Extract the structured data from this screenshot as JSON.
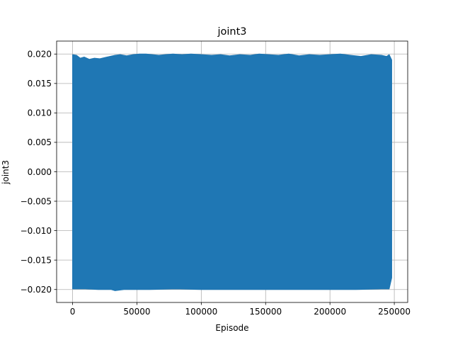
{
  "chart_data": {
    "type": "area",
    "title": "joint3",
    "xlabel": "Episode",
    "ylabel": "joint3",
    "xlim": [
      -12400,
      260400
    ],
    "ylim": [
      -0.0222,
      0.0222
    ],
    "xticks": [
      0,
      50000,
      100000,
      150000,
      200000,
      250000
    ],
    "xtick_labels": [
      "0",
      "50000",
      "100000",
      "150000",
      "200000",
      "250000"
    ],
    "yticks": [
      -0.02,
      -0.015,
      -0.01,
      -0.005,
      0.0,
      0.005,
      0.01,
      0.015,
      0.02
    ],
    "ytick_labels": [
      "−0.020",
      "−0.015",
      "−0.010",
      "−0.005",
      "0.000",
      "0.005",
      "0.010",
      "0.015",
      "0.020"
    ],
    "grid": true,
    "legend": "none",
    "series": [
      {
        "color": "#1f77b4",
        "x_range": [
          0,
          248000
        ],
        "upper_envelope": [
          [
            0,
            0.0199
          ],
          [
            3000,
            0.0198
          ],
          [
            6000,
            0.0193
          ],
          [
            9000,
            0.0195
          ],
          [
            13000,
            0.0191
          ],
          [
            17000,
            0.0193
          ],
          [
            21000,
            0.0192
          ],
          [
            25000,
            0.0194
          ],
          [
            29000,
            0.0196
          ],
          [
            33000,
            0.0198
          ],
          [
            37000,
            0.0199
          ],
          [
            42000,
            0.0197
          ],
          [
            47000,
            0.0199
          ],
          [
            52000,
            0.02
          ],
          [
            57000,
            0.02
          ],
          [
            62000,
            0.0199
          ],
          [
            67000,
            0.0198
          ],
          [
            72000,
            0.0199
          ],
          [
            78000,
            0.02
          ],
          [
            85000,
            0.0199
          ],
          [
            92000,
            0.02
          ],
          [
            100000,
            0.0199
          ],
          [
            108000,
            0.0198
          ],
          [
            115000,
            0.0199
          ],
          [
            122000,
            0.0197
          ],
          [
            130000,
            0.0199
          ],
          [
            138000,
            0.0198
          ],
          [
            145000,
            0.02
          ],
          [
            152000,
            0.0199
          ],
          [
            160000,
            0.0198
          ],
          [
            168000,
            0.02
          ],
          [
            176000,
            0.0197
          ],
          [
            184000,
            0.0199
          ],
          [
            192000,
            0.0198
          ],
          [
            200000,
            0.0199
          ],
          [
            208000,
            0.02
          ],
          [
            216000,
            0.0198
          ],
          [
            224000,
            0.0196
          ],
          [
            232000,
            0.0199
          ],
          [
            240000,
            0.0198
          ],
          [
            244000,
            0.0196
          ],
          [
            246000,
            0.0199
          ],
          [
            248000,
            0.019
          ]
        ],
        "lower_envelope": [
          [
            0,
            -0.0199
          ],
          [
            10000,
            -0.0199
          ],
          [
            20000,
            -0.02
          ],
          [
            30000,
            -0.02
          ],
          [
            33000,
            -0.0202
          ],
          [
            40000,
            -0.02
          ],
          [
            60000,
            -0.02
          ],
          [
            80000,
            -0.0199
          ],
          [
            100000,
            -0.02
          ],
          [
            120000,
            -0.02
          ],
          [
            140000,
            -0.02
          ],
          [
            160000,
            -0.02
          ],
          [
            180000,
            -0.02
          ],
          [
            200000,
            -0.02
          ],
          [
            220000,
            -0.02
          ],
          [
            240000,
            -0.0199
          ],
          [
            246000,
            -0.0199
          ],
          [
            248000,
            -0.018
          ]
        ]
      }
    ]
  }
}
